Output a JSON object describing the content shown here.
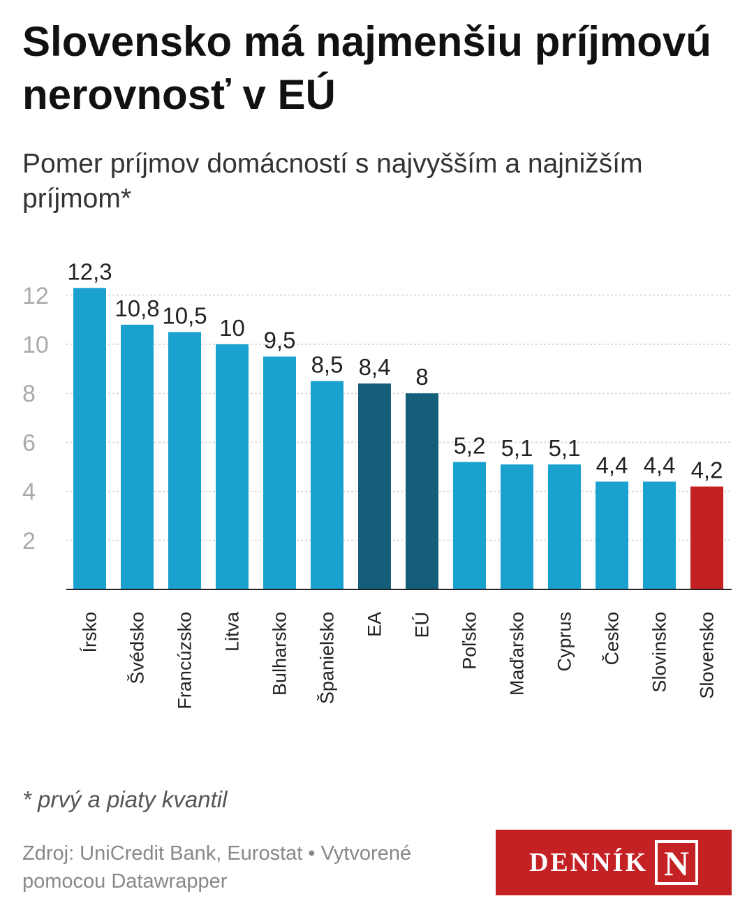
{
  "header": {
    "title": "Slovensko má najmenšiu príjmovú nerovnosť v EÚ",
    "subtitle": "Pomer príjmov domácností s najvyšším a najnižším príjmom*"
  },
  "chart_data": {
    "type": "bar",
    "title": "Slovensko má najmenšiu príjmovú nerovnosť v EÚ",
    "subtitle": "Pomer príjmov domácností s najvyšším a najnižším príjmom*",
    "categories": [
      "Írsko",
      "Švédsko",
      "Francúzsko",
      "Litva",
      "Bulharsko",
      "Španielsko",
      "EA",
      "EÚ",
      "Poľsko",
      "Maďarsko",
      "Cyprus",
      "Česko",
      "Slovinsko",
      "Slovensko"
    ],
    "values": [
      12.3,
      10.8,
      10.5,
      10,
      9.5,
      8.5,
      8.4,
      8,
      5.2,
      5.1,
      5.1,
      4.4,
      4.4,
      4.2
    ],
    "value_labels": [
      "12,3",
      "10,8",
      "10,5",
      "10",
      "9,5",
      "8,5",
      "8,4",
      "8",
      "5,2",
      "5,1",
      "5,1",
      "4,4",
      "4,4",
      "4,2"
    ],
    "highlight": [
      "default",
      "default",
      "default",
      "default",
      "default",
      "default",
      "aggregate",
      "aggregate",
      "default",
      "default",
      "default",
      "default",
      "default",
      "focus"
    ],
    "colors": {
      "default": "#1ba1d0",
      "aggregate": "#155e79",
      "focus": "#c42125",
      "grid": "#dddddd",
      "axis": "#222222"
    },
    "yticks": [
      2,
      4,
      6,
      8,
      10,
      12
    ],
    "ylim": [
      0,
      12.3
    ],
    "grid": true,
    "xlabel": "",
    "ylabel": ""
  },
  "footer": {
    "footnote": "* prvý a piaty kvantil",
    "source": "Zdroj: UniCredit Bank, Eurostat • Vytvorené pomocou Datawrapper",
    "logo_text": "DENNÍK",
    "logo_mark": "N"
  }
}
